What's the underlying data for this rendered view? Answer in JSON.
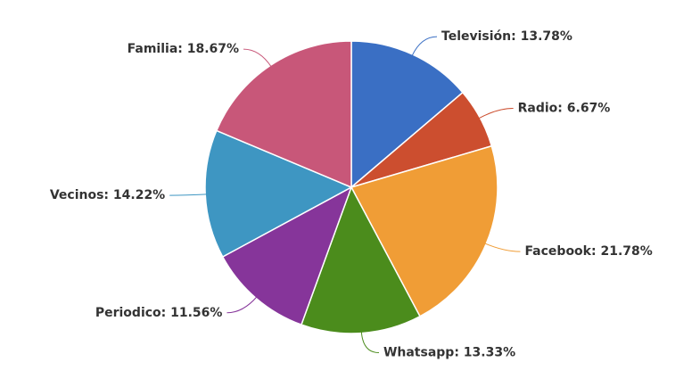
{
  "chart_data": {
    "type": "pie",
    "categories": [
      "Televisión",
      "Radio",
      "Facebook",
      "Whatsapp",
      "Periodico",
      "Vecinos",
      "Familia"
    ],
    "values": [
      13.78,
      6.67,
      21.78,
      13.33,
      11.56,
      14.22,
      18.67
    ],
    "value_labels": [
      "Televisión: 13.78%",
      "Radio: 6.67%",
      "Facebook: 21.78%",
      "Whatsapp: 13.33%",
      "Periodico: 11.56%",
      "Vecinos: 14.22%",
      "Familia: 18.67%"
    ],
    "colors": [
      "#3a6fc4",
      "#cc4e2f",
      "#f09d36",
      "#4b8c1c",
      "#86359a",
      "#3e96c2",
      "#c85779"
    ]
  }
}
